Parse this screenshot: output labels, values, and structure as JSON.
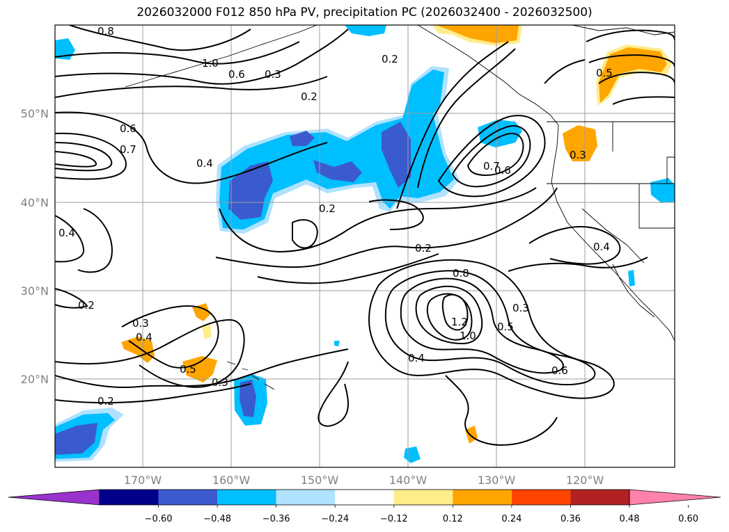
{
  "title": "2026032000 F012 850 hPa PV, precipitation PC (2026032400 - 2026032500)",
  "lon_labels": [
    "170°W",
    "160°W",
    "150°W",
    "140°W",
    "130°W",
    "120°W"
  ],
  "lat_labels": [
    "50°N",
    "40°N",
    "30°N",
    "20°N"
  ],
  "contour_labels": [
    "0.2",
    "0.2",
    "0.2",
    "0.2",
    "0.2",
    "0.2",
    "0.3",
    "0.3",
    "0.3",
    "0.3",
    "0.3",
    "0.4",
    "0.4",
    "0.4",
    "0.4",
    "0.4",
    "0.5",
    "0.5",
    "0.5",
    "0.6",
    "0.6",
    "0.6",
    "0.6",
    "0.7",
    "0.7",
    "0.8",
    "0.8",
    "1.0",
    "1.0",
    "1.2"
  ],
  "colorbar": {
    "ticks": [
      "−0.60",
      "−0.48",
      "−0.36",
      "−0.24",
      "−0.12",
      "0.12",
      "0.24",
      "0.36",
      "0.48",
      "0.60"
    ],
    "colors": [
      "#9a32cd",
      "#00008b",
      "#3a5bcd",
      "#00bfff",
      "#b0e2ff",
      "#ffffff",
      "#ffec8b",
      "#ffa500",
      "#ff4500",
      "#b22222",
      "#ff82ab"
    ]
  },
  "fill_colors": {
    "neg_strong": "#3a5bcd",
    "neg_mid": "#00bfff",
    "neg_weak": "#b0e2ff",
    "pos_weak": "#ffec8b",
    "pos_mid": "#ffa500"
  }
}
